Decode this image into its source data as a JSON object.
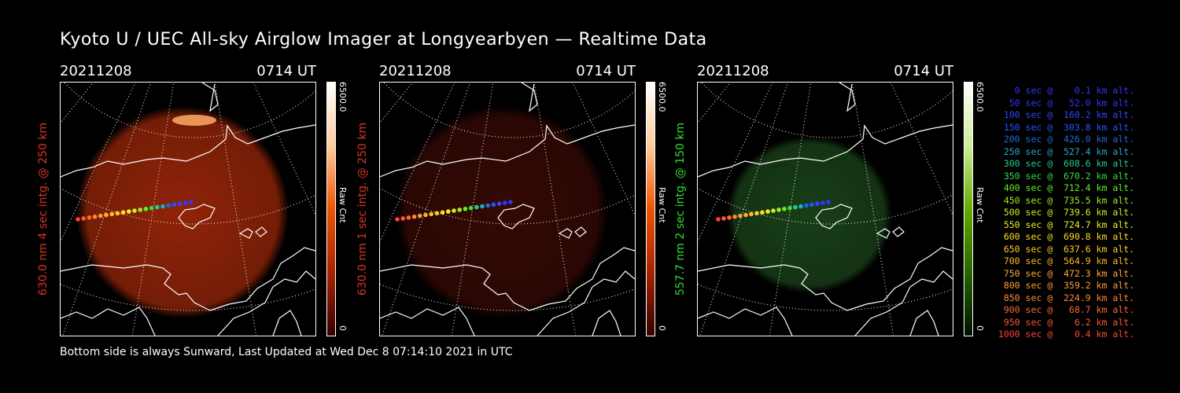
{
  "title": "Kyoto U / UEC All-sky Airglow Imager at Longyearbyen — Realtime Data",
  "footer": "Bottom side is always Sunward, Last Updated at Wed Dec  8 07:14:10 2021 in UTC",
  "panels": [
    {
      "date": "20211208",
      "time": "0714 UT",
      "side_label": "630.0 nm 4 sec intg. @ 250 km",
      "side_color": "#dd3322",
      "cbar_max": "6500.0",
      "cbar_unit": "Raw Cnt",
      "cbar_min": "0",
      "cbar_colors": [
        "#330000",
        "#aa2200",
        "#ee5500",
        "#ffcc99",
        "#ffffff"
      ],
      "glow_color": "#aa2a0a",
      "glow_opacity": 0.85
    },
    {
      "date": "20211208",
      "time": "0714 UT",
      "side_label": "630.0 nm 1 sec intg. @ 250 km",
      "side_color": "#dd3322",
      "cbar_max": "6500.0",
      "cbar_unit": "Raw Cnt",
      "cbar_min": "0",
      "cbar_colors": [
        "#330000",
        "#aa2200",
        "#ee5500",
        "#ffcc99",
        "#ffffff"
      ],
      "glow_color": "#3a0a05",
      "glow_opacity": 0.9
    },
    {
      "date": "20211208",
      "time": "0714 UT",
      "side_label": "557.7 nm 2 sec intg. @ 150 km",
      "side_color": "#33dd33",
      "cbar_max": "6500.0",
      "cbar_unit": "Raw Cnt",
      "cbar_min": "0",
      "cbar_colors": [
        "#001100",
        "#226600",
        "#66aa00",
        "#ccee99",
        "#ffffff"
      ],
      "glow_color": "#1c4a1c",
      "glow_opacity": 0.85
    }
  ],
  "legend": [
    {
      "text": "   0 sec @    0.1 km alt.",
      "color": "#3333ff"
    },
    {
      "text": "  50 sec @   52.0 km alt.",
      "color": "#3333ff"
    },
    {
      "text": " 100 sec @  160.2 km alt.",
      "color": "#3344ff"
    },
    {
      "text": " 150 sec @  303.8 km alt.",
      "color": "#2255ff"
    },
    {
      "text": " 200 sec @  426.0 km alt.",
      "color": "#2266dd"
    },
    {
      "text": " 250 sec @  527.4 km alt.",
      "color": "#22aacc"
    },
    {
      "text": " 300 sec @  608.6 km alt.",
      "color": "#22cc88"
    },
    {
      "text": " 350 sec @  670.2 km alt.",
      "color": "#33dd44"
    },
    {
      "text": " 400 sec @  712.4 km alt.",
      "color": "#66ee22"
    },
    {
      "text": " 450 sec @  735.5 km alt.",
      "color": "#99ee22"
    },
    {
      "text": " 500 sec @  739.6 km alt.",
      "color": "#ccee22"
    },
    {
      "text": " 550 sec @  724.7 km alt.",
      "color": "#eeee22"
    },
    {
      "text": " 600 sec @  690.8 km alt.",
      "color": "#ffdd22"
    },
    {
      "text": " 650 sec @  637.6 km alt.",
      "color": "#ffcc22"
    },
    {
      "text": " 700 sec @  564.9 km alt.",
      "color": "#ffbb22"
    },
    {
      "text": " 750 sec @  472.3 km alt.",
      "color": "#ffaa33"
    },
    {
      "text": " 800 sec @  359.2 km alt.",
      "color": "#ff9933"
    },
    {
      "text": " 850 sec @  224.9 km alt.",
      "color": "#ff8833"
    },
    {
      "text": " 900 sec @   68.7 km alt.",
      "color": "#ff6633"
    },
    {
      "text": " 950 sec @    6.2 km alt.",
      "color": "#ff5533"
    },
    {
      "text": "1000 sec @    0.4 km alt.",
      "color": "#ff4433"
    }
  ]
}
